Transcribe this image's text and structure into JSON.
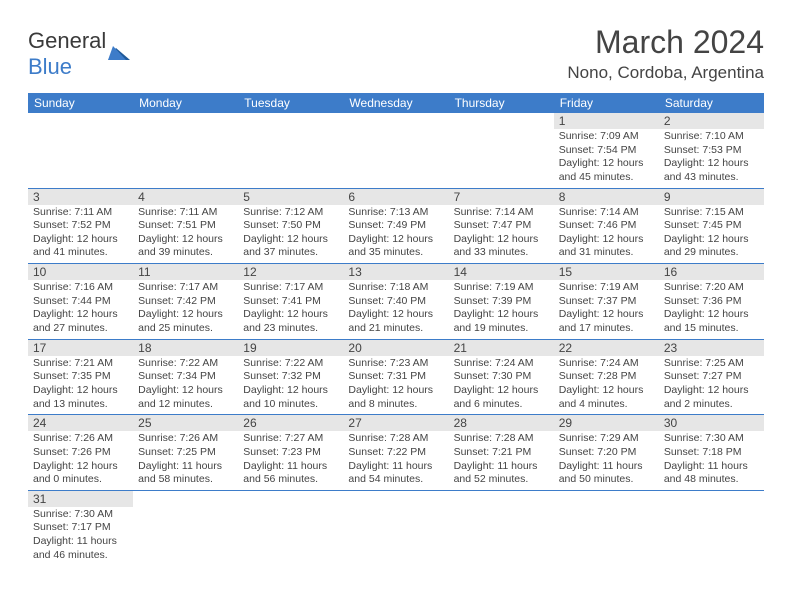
{
  "logo": {
    "general": "General",
    "blue": "Blue"
  },
  "title": "March 2024",
  "location": "Nono, Cordoba, Argentina",
  "weekdays": [
    "Sunday",
    "Monday",
    "Tuesday",
    "Wednesday",
    "Thursday",
    "Friday",
    "Saturday"
  ],
  "colors": {
    "header_bg": "#3d7cc9",
    "header_fg": "#ffffff",
    "daynum_bg": "#e6e6e6",
    "text": "#444444",
    "row_border": "#3d7cc9"
  },
  "weeks": [
    [
      null,
      null,
      null,
      null,
      null,
      {
        "n": "1",
        "sr": "Sunrise: 7:09 AM",
        "ss": "Sunset: 7:54 PM",
        "dl1": "Daylight: 12 hours",
        "dl2": "and 45 minutes."
      },
      {
        "n": "2",
        "sr": "Sunrise: 7:10 AM",
        "ss": "Sunset: 7:53 PM",
        "dl1": "Daylight: 12 hours",
        "dl2": "and 43 minutes."
      }
    ],
    [
      {
        "n": "3",
        "sr": "Sunrise: 7:11 AM",
        "ss": "Sunset: 7:52 PM",
        "dl1": "Daylight: 12 hours",
        "dl2": "and 41 minutes."
      },
      {
        "n": "4",
        "sr": "Sunrise: 7:11 AM",
        "ss": "Sunset: 7:51 PM",
        "dl1": "Daylight: 12 hours",
        "dl2": "and 39 minutes."
      },
      {
        "n": "5",
        "sr": "Sunrise: 7:12 AM",
        "ss": "Sunset: 7:50 PM",
        "dl1": "Daylight: 12 hours",
        "dl2": "and 37 minutes."
      },
      {
        "n": "6",
        "sr": "Sunrise: 7:13 AM",
        "ss": "Sunset: 7:49 PM",
        "dl1": "Daylight: 12 hours",
        "dl2": "and 35 minutes."
      },
      {
        "n": "7",
        "sr": "Sunrise: 7:14 AM",
        "ss": "Sunset: 7:47 PM",
        "dl1": "Daylight: 12 hours",
        "dl2": "and 33 minutes."
      },
      {
        "n": "8",
        "sr": "Sunrise: 7:14 AM",
        "ss": "Sunset: 7:46 PM",
        "dl1": "Daylight: 12 hours",
        "dl2": "and 31 minutes."
      },
      {
        "n": "9",
        "sr": "Sunrise: 7:15 AM",
        "ss": "Sunset: 7:45 PM",
        "dl1": "Daylight: 12 hours",
        "dl2": "and 29 minutes."
      }
    ],
    [
      {
        "n": "10",
        "sr": "Sunrise: 7:16 AM",
        "ss": "Sunset: 7:44 PM",
        "dl1": "Daylight: 12 hours",
        "dl2": "and 27 minutes."
      },
      {
        "n": "11",
        "sr": "Sunrise: 7:17 AM",
        "ss": "Sunset: 7:42 PM",
        "dl1": "Daylight: 12 hours",
        "dl2": "and 25 minutes."
      },
      {
        "n": "12",
        "sr": "Sunrise: 7:17 AM",
        "ss": "Sunset: 7:41 PM",
        "dl1": "Daylight: 12 hours",
        "dl2": "and 23 minutes."
      },
      {
        "n": "13",
        "sr": "Sunrise: 7:18 AM",
        "ss": "Sunset: 7:40 PM",
        "dl1": "Daylight: 12 hours",
        "dl2": "and 21 minutes."
      },
      {
        "n": "14",
        "sr": "Sunrise: 7:19 AM",
        "ss": "Sunset: 7:39 PM",
        "dl1": "Daylight: 12 hours",
        "dl2": "and 19 minutes."
      },
      {
        "n": "15",
        "sr": "Sunrise: 7:19 AM",
        "ss": "Sunset: 7:37 PM",
        "dl1": "Daylight: 12 hours",
        "dl2": "and 17 minutes."
      },
      {
        "n": "16",
        "sr": "Sunrise: 7:20 AM",
        "ss": "Sunset: 7:36 PM",
        "dl1": "Daylight: 12 hours",
        "dl2": "and 15 minutes."
      }
    ],
    [
      {
        "n": "17",
        "sr": "Sunrise: 7:21 AM",
        "ss": "Sunset: 7:35 PM",
        "dl1": "Daylight: 12 hours",
        "dl2": "and 13 minutes."
      },
      {
        "n": "18",
        "sr": "Sunrise: 7:22 AM",
        "ss": "Sunset: 7:34 PM",
        "dl1": "Daylight: 12 hours",
        "dl2": "and 12 minutes."
      },
      {
        "n": "19",
        "sr": "Sunrise: 7:22 AM",
        "ss": "Sunset: 7:32 PM",
        "dl1": "Daylight: 12 hours",
        "dl2": "and 10 minutes."
      },
      {
        "n": "20",
        "sr": "Sunrise: 7:23 AM",
        "ss": "Sunset: 7:31 PM",
        "dl1": "Daylight: 12 hours",
        "dl2": "and 8 minutes."
      },
      {
        "n": "21",
        "sr": "Sunrise: 7:24 AM",
        "ss": "Sunset: 7:30 PM",
        "dl1": "Daylight: 12 hours",
        "dl2": "and 6 minutes."
      },
      {
        "n": "22",
        "sr": "Sunrise: 7:24 AM",
        "ss": "Sunset: 7:28 PM",
        "dl1": "Daylight: 12 hours",
        "dl2": "and 4 minutes."
      },
      {
        "n": "23",
        "sr": "Sunrise: 7:25 AM",
        "ss": "Sunset: 7:27 PM",
        "dl1": "Daylight: 12 hours",
        "dl2": "and 2 minutes."
      }
    ],
    [
      {
        "n": "24",
        "sr": "Sunrise: 7:26 AM",
        "ss": "Sunset: 7:26 PM",
        "dl1": "Daylight: 12 hours",
        "dl2": "and 0 minutes."
      },
      {
        "n": "25",
        "sr": "Sunrise: 7:26 AM",
        "ss": "Sunset: 7:25 PM",
        "dl1": "Daylight: 11 hours",
        "dl2": "and 58 minutes."
      },
      {
        "n": "26",
        "sr": "Sunrise: 7:27 AM",
        "ss": "Sunset: 7:23 PM",
        "dl1": "Daylight: 11 hours",
        "dl2": "and 56 minutes."
      },
      {
        "n": "27",
        "sr": "Sunrise: 7:28 AM",
        "ss": "Sunset: 7:22 PM",
        "dl1": "Daylight: 11 hours",
        "dl2": "and 54 minutes."
      },
      {
        "n": "28",
        "sr": "Sunrise: 7:28 AM",
        "ss": "Sunset: 7:21 PM",
        "dl1": "Daylight: 11 hours",
        "dl2": "and 52 minutes."
      },
      {
        "n": "29",
        "sr": "Sunrise: 7:29 AM",
        "ss": "Sunset: 7:20 PM",
        "dl1": "Daylight: 11 hours",
        "dl2": "and 50 minutes."
      },
      {
        "n": "30",
        "sr": "Sunrise: 7:30 AM",
        "ss": "Sunset: 7:18 PM",
        "dl1": "Daylight: 11 hours",
        "dl2": "and 48 minutes."
      }
    ],
    [
      {
        "n": "31",
        "sr": "Sunrise: 7:30 AM",
        "ss": "Sunset: 7:17 PM",
        "dl1": "Daylight: 11 hours",
        "dl2": "and 46 minutes."
      },
      null,
      null,
      null,
      null,
      null,
      null
    ]
  ]
}
